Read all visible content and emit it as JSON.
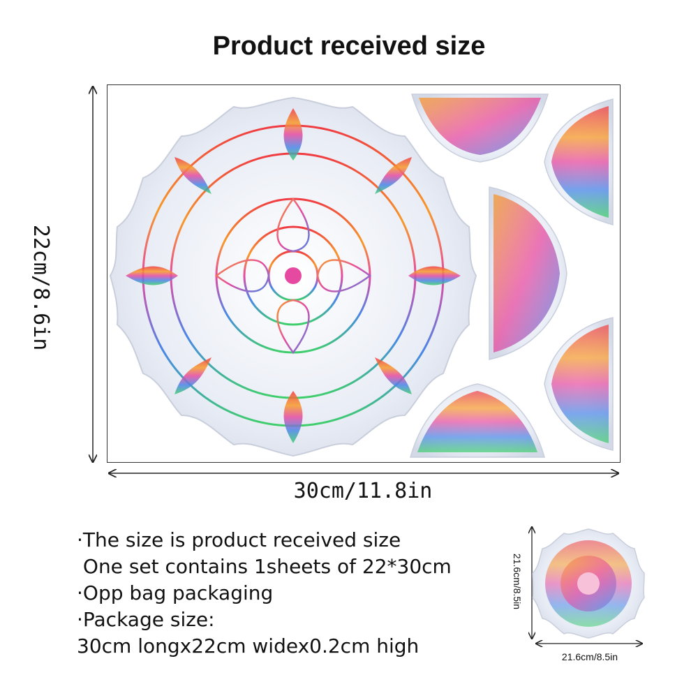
{
  "title": "Product received size",
  "sheet": {
    "height_label": "22cm/8.6in",
    "width_label": "30cm/11.8in"
  },
  "details": [
    "·The size is product received size",
    " One set contains 1sheets of 22*30cm",
    "·Opp bag packaging",
    "·Package size:",
    "30cm longx22cm widex0.2cm high"
  ],
  "sample": {
    "height_label": "21.6cm/8.5in",
    "width_label": "21.6cm/8.5in"
  },
  "colors": {
    "red": "#ef3b43",
    "orange": "#f79a2a",
    "pink": "#e64aa0",
    "blue": "#4a86e8",
    "green": "#3fcf6a",
    "silver": "#dfe4ee"
  }
}
